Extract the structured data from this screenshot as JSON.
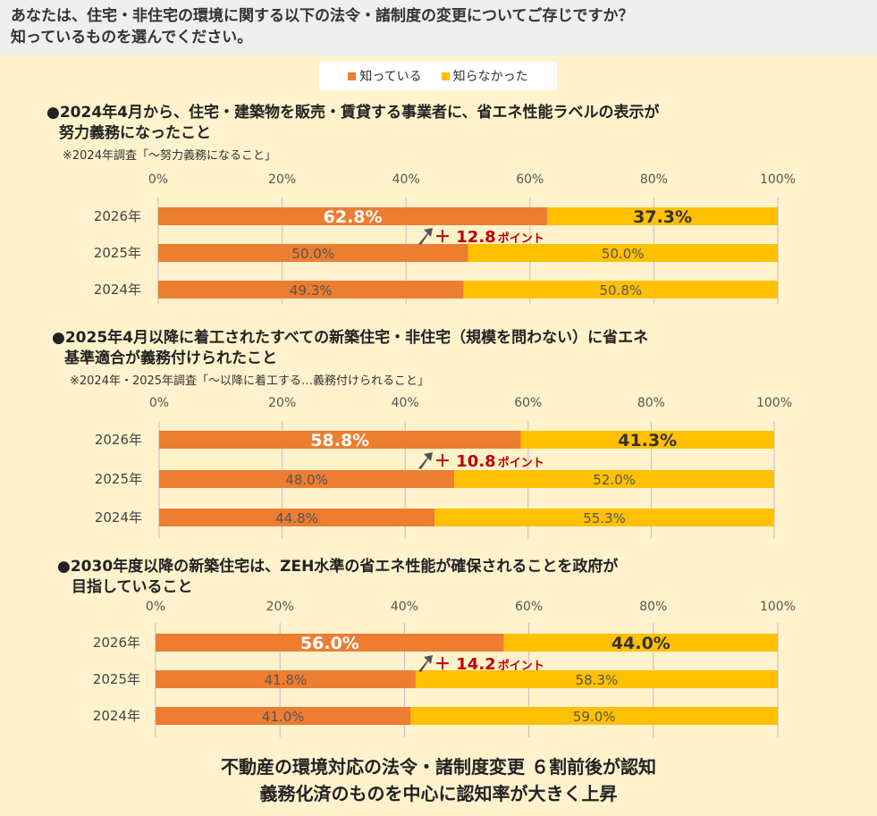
{
  "header": {
    "line1": "あなたは、住宅・非住宅の環境に関する以下の法令・諸制度の変更についてご存じですか？",
    "line2": "知っているものを選んでください。"
  },
  "legend": [
    {
      "label": "知っている",
      "color": "#ED7D31"
    },
    {
      "label": "知らなかった",
      "color": "#FFC000"
    }
  ],
  "sections": [
    {
      "title1": "●2024年4月から、住宅・建築物を販売・賃貸する事業者に、省エネ性能ラベルの表示が",
      "title2": "努力義務になったこと",
      "note": "※2024年調査「～努力義務になること」"
    },
    {
      "title1": "●2025年4月以降に着工されたすべての新築住宅・非住宅（規模を問わない）に省エネ",
      "title2": "基準適合が義務付けられたこと",
      "note": "※2024年・2025年調査「～以降に着工する…義務付けられること」"
    },
    {
      "title1": "●2030年度以降の新築住宅は、ZEH水準の省エネ性能が確保されることを政府が",
      "title2": "目指していること",
      "note": ""
    }
  ],
  "chart_data": [
    {
      "type": "bar",
      "orientation": "horizontal",
      "stacked": true,
      "categories": [
        "2026年",
        "2025年",
        "2024年"
      ],
      "series": [
        {
          "name": "知っている",
          "values": [
            62.8,
            50.0,
            49.3
          ],
          "labels": [
            "62.8%",
            "50.0%",
            "49.3%"
          ]
        },
        {
          "name": "知らなかった",
          "values": [
            37.3,
            50.0,
            50.8
          ],
          "labels": [
            "37.3%",
            "50.0%",
            "50.8%"
          ]
        }
      ],
      "xlim": [
        0,
        100
      ],
      "ticks": [
        "0%",
        "20%",
        "40%",
        "60%",
        "80%",
        "100%"
      ],
      "annotation": {
        "prefix": "＋",
        "value": "12.8",
        "unit": "ポイント"
      }
    },
    {
      "type": "bar",
      "orientation": "horizontal",
      "stacked": true,
      "categories": [
        "2026年",
        "2025年",
        "2024年"
      ],
      "series": [
        {
          "name": "知っている",
          "values": [
            58.8,
            48.0,
            44.8
          ],
          "labels": [
            "58.8%",
            "48.0%",
            "44.8%"
          ]
        },
        {
          "name": "知らなかった",
          "values": [
            41.3,
            52.0,
            55.3
          ],
          "labels": [
            "41.3%",
            "52.0%",
            "55.3%"
          ]
        }
      ],
      "xlim": [
        0,
        100
      ],
      "ticks": [
        "0%",
        "20%",
        "40%",
        "60%",
        "80%",
        "100%"
      ],
      "annotation": {
        "prefix": "＋",
        "value": "10.8",
        "unit": "ポイント"
      }
    },
    {
      "type": "bar",
      "orientation": "horizontal",
      "stacked": true,
      "categories": [
        "2026年",
        "2025年",
        "2024年"
      ],
      "series": [
        {
          "name": "知っている",
          "values": [
            56.0,
            41.8,
            41.0
          ],
          "labels": [
            "56.0%",
            "41.8%",
            "41.0%"
          ]
        },
        {
          "name": "知らなかった",
          "values": [
            44.0,
            58.3,
            59.0
          ],
          "labels": [
            "44.0%",
            "58.3%",
            "59.0%"
          ]
        }
      ],
      "xlim": [
        0,
        100
      ],
      "ticks": [
        "0%",
        "20%",
        "40%",
        "60%",
        "80%",
        "100%"
      ],
      "annotation": {
        "prefix": "＋",
        "value": "14.2",
        "unit": "ポイント"
      }
    }
  ],
  "conclusion": {
    "line1": "不動産の環境対応の法令・諸制度変更 ６割前後が認知",
    "line2": "義務化済のものを中心に認知率が大きく上昇"
  }
}
